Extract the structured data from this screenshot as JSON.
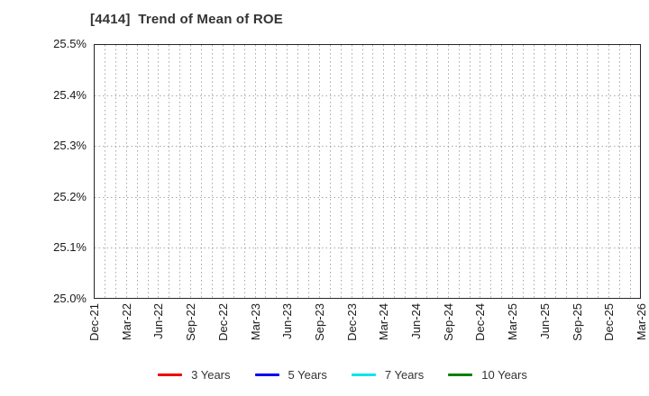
{
  "chart_data": {
    "type": "line",
    "title": "[4414]  Trend of Mean of ROE",
    "title_color": "#333333",
    "xlabel": "",
    "ylabel": "",
    "ylim": [
      25.0,
      25.5
    ],
    "y_tick_values": [
      25.0,
      25.1,
      25.2,
      25.3,
      25.4,
      25.5
    ],
    "y_tick_labels": [
      "25.0%",
      "25.1%",
      "25.2%",
      "25.3%",
      "25.4%",
      "25.5%"
    ],
    "x_tick_labels": [
      "Dec-21",
      "Mar-22",
      "Jun-22",
      "Sep-22",
      "Dec-22",
      "Mar-23",
      "Jun-23",
      "Sep-23",
      "Dec-23",
      "Mar-24",
      "Jun-24",
      "Sep-24",
      "Dec-24",
      "Mar-25",
      "Jun-25",
      "Sep-25",
      "Dec-25",
      "Mar-26"
    ],
    "x_range_months": 51,
    "x_tick_every_months": 3,
    "grid": true,
    "grid_style": "dotted",
    "grid_color": "#a8a8a8",
    "border_color": "#262626",
    "legend_position": "bottom",
    "series": [
      {
        "name": "3 Years",
        "color": "#ee0000",
        "x": [],
        "values": []
      },
      {
        "name": "5 Years",
        "color": "#0000ee",
        "x": [],
        "values": []
      },
      {
        "name": "7 Years",
        "color": "#00e5ee",
        "x": [],
        "values": []
      },
      {
        "name": "10 Years",
        "color": "#008000",
        "x": [],
        "values": []
      }
    ]
  }
}
